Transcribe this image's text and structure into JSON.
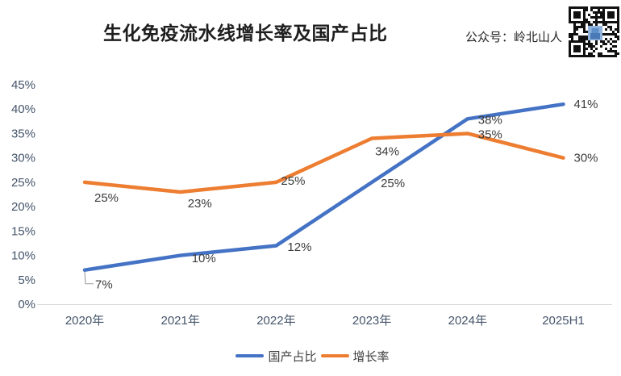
{
  "header": {
    "title": "生化免疫流水线增长率及国产占比",
    "publisher": "公众号：岭北山人",
    "qr_icon": "qr-code"
  },
  "chart_data": {
    "type": "line",
    "title": "生化免疫流水线增长率及国产占比",
    "categories": [
      "2020年",
      "2021年",
      "2022年",
      "2023年",
      "2024年",
      "2025H1"
    ],
    "series": [
      {
        "name": "国产占比",
        "color": "#4472C4",
        "values": [
          7,
          10,
          12,
          25,
          38,
          41
        ],
        "labels": [
          "7%",
          "10%",
          "12%",
          "25%",
          "38%",
          "41%"
        ]
      },
      {
        "name": "增长率",
        "color": "#ED7D31",
        "values": [
          25,
          23,
          25,
          34,
          35,
          30
        ],
        "labels": [
          "25%",
          "23%",
          "25%",
          "34%",
          "35%",
          "30%"
        ]
      }
    ],
    "y_ticks": [
      "0%",
      "5%",
      "10%",
      "15%",
      "20%",
      "25%",
      "30%",
      "35%",
      "40%",
      "45%"
    ],
    "ylim": [
      0,
      45
    ],
    "grid": false,
    "legend_position": "bottom",
    "axis_line_color": "#d9d9d9",
    "leader_line_color": "#a6a6a6"
  }
}
